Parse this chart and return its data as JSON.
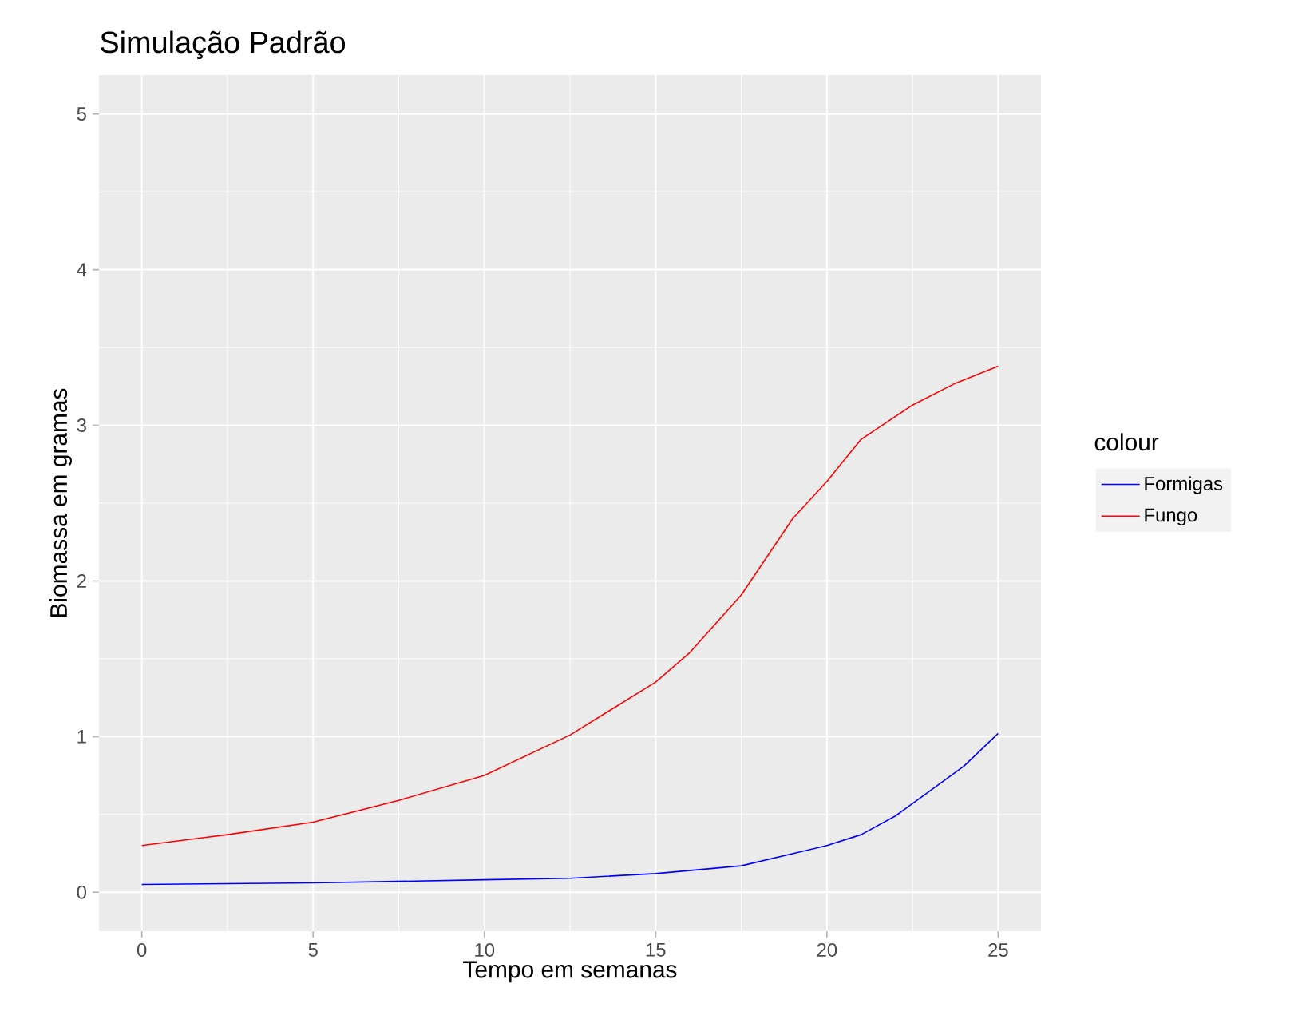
{
  "chart_data": {
    "type": "line",
    "title": "Simulação Padrão",
    "xlabel": "Tempo em semanas",
    "ylabel": "Biomassa em gramas",
    "legend_title": "colour",
    "legend": "right",
    "grid": true,
    "xlim": [
      -1.25,
      26.25
    ],
    "ylim": [
      -0.25,
      5.25
    ],
    "xticks": [
      0,
      5,
      10,
      15,
      20,
      25
    ],
    "yticks": [
      0,
      1,
      2,
      3,
      4,
      5
    ],
    "series": [
      {
        "name": "Formigas",
        "color": "#0000ff",
        "x": [
          0,
          5,
          10,
          12.5,
          15,
          17.5,
          20,
          21,
          22,
          23,
          24,
          25
        ],
        "values": [
          0.05,
          0.06,
          0.08,
          0.09,
          0.12,
          0.17,
          0.3,
          0.37,
          0.49,
          0.65,
          0.81,
          1.02
        ]
      },
      {
        "name": "Fungo",
        "color": "#ff0000",
        "x": [
          0,
          2.5,
          5,
          7.5,
          10,
          12.5,
          15,
          16,
          17.5,
          19,
          20,
          21,
          22.5,
          23.75,
          25
        ],
        "values": [
          0.3,
          0.37,
          0.45,
          0.59,
          0.75,
          1.01,
          1.35,
          1.54,
          1.91,
          2.4,
          2.64,
          2.91,
          3.13,
          3.27,
          3.38
        ]
      }
    ]
  }
}
